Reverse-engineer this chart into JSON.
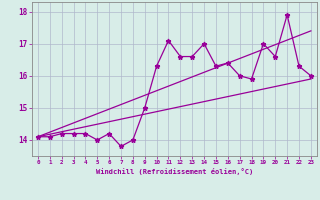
{
  "x": [
    0,
    1,
    2,
    3,
    4,
    5,
    6,
    7,
    8,
    9,
    10,
    11,
    12,
    13,
    14,
    15,
    16,
    17,
    18,
    19,
    20,
    21,
    22,
    23
  ],
  "y_main": [
    14.1,
    14.1,
    14.2,
    14.2,
    14.2,
    14.0,
    14.2,
    13.8,
    14.0,
    15.0,
    16.3,
    17.1,
    16.6,
    16.6,
    17.0,
    16.3,
    16.4,
    16.0,
    15.9,
    17.0,
    16.6,
    17.9,
    16.3,
    16.0
  ],
  "y_line1_start": 14.1,
  "y_line1_end": 17.4,
  "y_line2_start": 14.1,
  "y_line2_end": 15.9,
  "color": "#990099",
  "bg_color": "#d8ede8",
  "grid_color": "#b0b8cc",
  "xlabel": "Windchill (Refroidissement éolien,°C)",
  "ylim": [
    13.5,
    18.3
  ],
  "xlim": [
    -0.5,
    23.5
  ],
  "yticks": [
    14,
    15,
    16,
    17,
    18
  ],
  "xticks": [
    0,
    1,
    2,
    3,
    4,
    5,
    6,
    7,
    8,
    9,
    10,
    11,
    12,
    13,
    14,
    15,
    16,
    17,
    18,
    19,
    20,
    21,
    22,
    23
  ]
}
